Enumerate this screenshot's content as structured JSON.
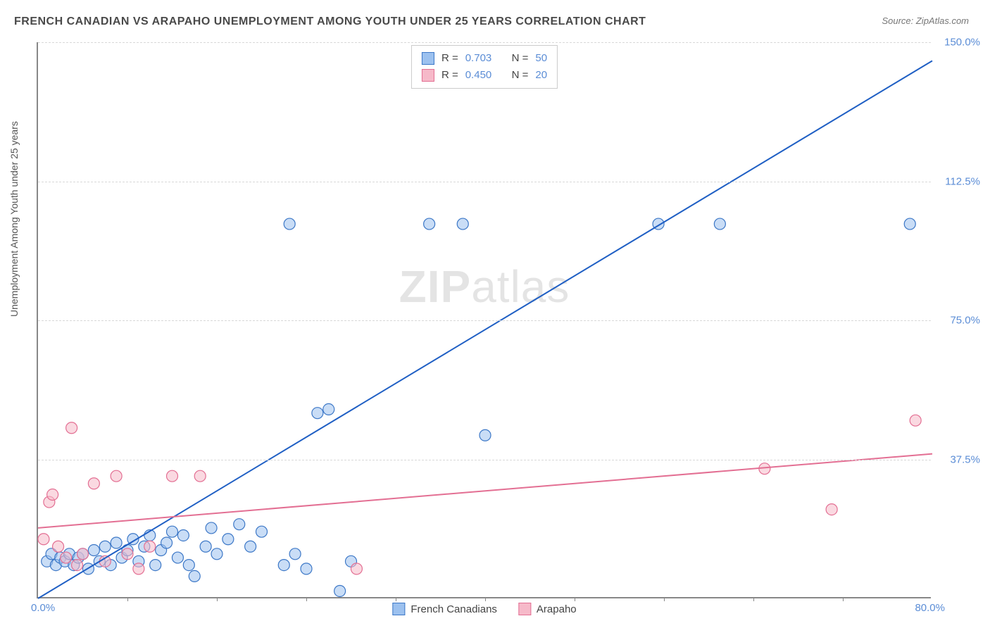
{
  "title": "FRENCH CANADIAN VS ARAPAHO UNEMPLOYMENT AMONG YOUTH UNDER 25 YEARS CORRELATION CHART",
  "source_label": "Source: ZipAtlas.com",
  "y_axis_label": "Unemployment Among Youth under 25 years",
  "watermark": {
    "bold": "ZIP",
    "light": "atlas"
  },
  "chart": {
    "type": "scatter",
    "background_color": "#ffffff",
    "grid_color": "#d8d8d8",
    "axis_color": "#888888",
    "xlim": [
      0,
      80
    ],
    "ylim": [
      0,
      150
    ],
    "x_origin_label": "0.0%",
    "x_max_label": "80.0%",
    "y_ticks": [
      37.5,
      75.0,
      112.5,
      150.0
    ],
    "y_tick_labels": [
      "37.5%",
      "75.0%",
      "112.5%",
      "150.0%"
    ],
    "x_tick_positions": [
      8,
      16,
      24,
      32,
      40,
      48,
      56,
      64,
      72
    ],
    "marker_radius": 8,
    "marker_opacity": 0.55,
    "trendline_width": 2,
    "series": [
      {
        "name": "French Canadians",
        "fill_color": "#9cc1ef",
        "stroke_color": "#3d78c7",
        "trend_color": "#1f5fc4",
        "R": "0.703",
        "N": "50",
        "trendline": {
          "x1": 0,
          "y1": 0,
          "x2": 80,
          "y2": 145
        },
        "points": [
          [
            0.8,
            10
          ],
          [
            1.2,
            12
          ],
          [
            1.6,
            9
          ],
          [
            2.0,
            11
          ],
          [
            2.4,
            10
          ],
          [
            2.8,
            12
          ],
          [
            3.2,
            9
          ],
          [
            3.6,
            11
          ],
          [
            4.0,
            12
          ],
          [
            4.5,
            8
          ],
          [
            5.0,
            13
          ],
          [
            5.5,
            10
          ],
          [
            6.0,
            14
          ],
          [
            6.5,
            9
          ],
          [
            7.0,
            15
          ],
          [
            7.5,
            11
          ],
          [
            8.0,
            13
          ],
          [
            8.5,
            16
          ],
          [
            9.0,
            10
          ],
          [
            9.5,
            14
          ],
          [
            10.0,
            17
          ],
          [
            10.5,
            9
          ],
          [
            11.0,
            13
          ],
          [
            11.5,
            15
          ],
          [
            12.0,
            18
          ],
          [
            12.5,
            11
          ],
          [
            13.0,
            17
          ],
          [
            13.5,
            9
          ],
          [
            14.0,
            6
          ],
          [
            15.0,
            14
          ],
          [
            15.5,
            19
          ],
          [
            16.0,
            12
          ],
          [
            17.0,
            16
          ],
          [
            18.0,
            20
          ],
          [
            19.0,
            14
          ],
          [
            20.0,
            18
          ],
          [
            22.0,
            9
          ],
          [
            23.0,
            12
          ],
          [
            24.0,
            8
          ],
          [
            25.0,
            50
          ],
          [
            26.0,
            51
          ],
          [
            27.0,
            2
          ],
          [
            28.0,
            10
          ],
          [
            22.5,
            101
          ],
          [
            35.0,
            101
          ],
          [
            38.0,
            101
          ],
          [
            40.0,
            44
          ],
          [
            55.5,
            101
          ],
          [
            61.0,
            101
          ],
          [
            78.0,
            101
          ]
        ]
      },
      {
        "name": "Arapaho",
        "fill_color": "#f6b9c9",
        "stroke_color": "#e36f93",
        "trend_color": "#e36f93",
        "R": "0.450",
        "N": "20",
        "trendline": {
          "x1": 0,
          "y1": 19,
          "x2": 80,
          "y2": 39
        },
        "points": [
          [
            0.5,
            16
          ],
          [
            1.0,
            26
          ],
          [
            1.3,
            28
          ],
          [
            1.8,
            14
          ],
          [
            2.5,
            11
          ],
          [
            3.0,
            46
          ],
          [
            3.5,
            9
          ],
          [
            4.0,
            12
          ],
          [
            5.0,
            31
          ],
          [
            6.0,
            10
          ],
          [
            7.0,
            33
          ],
          [
            8.0,
            12
          ],
          [
            9.0,
            8
          ],
          [
            10.0,
            14
          ],
          [
            12.0,
            33
          ],
          [
            14.5,
            33
          ],
          [
            28.5,
            8
          ],
          [
            65.0,
            35
          ],
          [
            71.0,
            24
          ],
          [
            78.5,
            48
          ]
        ]
      }
    ],
    "legend_top_prefix_R": "R  =",
    "legend_top_prefix_N": "N  =",
    "legend_bottom": [
      {
        "label": "French Canadians",
        "fill": "#9cc1ef",
        "stroke": "#3d78c7"
      },
      {
        "label": "Arapaho",
        "fill": "#f6b9c9",
        "stroke": "#e36f93"
      }
    ]
  }
}
